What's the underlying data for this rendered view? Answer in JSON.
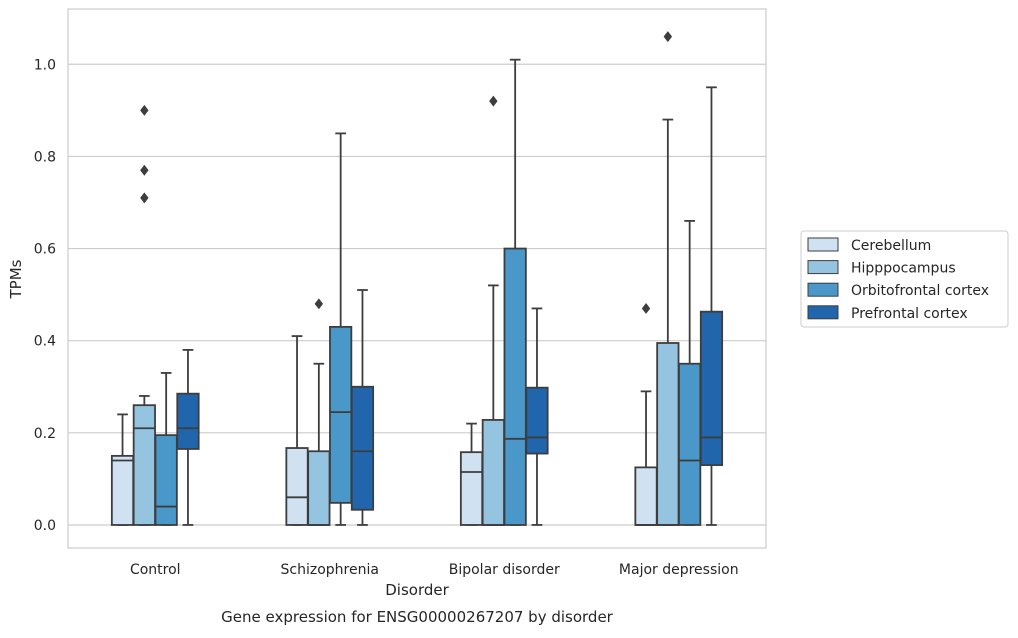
{
  "chart_data": {
    "type": "box",
    "title": "",
    "caption": "Gene expression for ENSG00000267207 by disorder",
    "xlabel": "Disorder",
    "ylabel": "TPMs",
    "ylim": [
      -0.05,
      1.12
    ],
    "yticks": [
      "0.0",
      "0.2",
      "0.4",
      "0.6",
      "0.8",
      "1.0"
    ],
    "grid": true,
    "legend_position": "right",
    "categories": [
      "Control",
      "Schizophrenia",
      "Bipolar disorder",
      "Major depression"
    ],
    "series": [
      {
        "name": "Cerebellum",
        "color": "#d0e1f1",
        "boxes": [
          {
            "whislo": 0.0,
            "q1": 0.0,
            "med": 0.14,
            "q3": 0.15,
            "whishi": 0.24,
            "fliers": []
          },
          {
            "whislo": 0.0,
            "q1": 0.0,
            "med": 0.06,
            "q3": 0.167,
            "whishi": 0.41,
            "fliers": []
          },
          {
            "whislo": 0.0,
            "q1": 0.0,
            "med": 0.115,
            "q3": 0.158,
            "whishi": 0.22,
            "fliers": []
          },
          {
            "whislo": 0.0,
            "q1": 0.0,
            "med": 0.0,
            "q3": 0.125,
            "whishi": 0.29,
            "fliers": [
              0.47
            ]
          }
        ]
      },
      {
        "name": "Hipppocampus",
        "color": "#94c4df",
        "boxes": [
          {
            "whislo": 0.0,
            "q1": 0.0,
            "med": 0.21,
            "q3": 0.26,
            "whishi": 0.28,
            "fliers": [
              0.71,
              0.77,
              0.9
            ]
          },
          {
            "whislo": 0.0,
            "q1": 0.0,
            "med": 0.0,
            "q3": 0.16,
            "whishi": 0.35,
            "fliers": [
              0.48
            ]
          },
          {
            "whislo": 0.0,
            "q1": 0.0,
            "med": 0.0,
            "q3": 0.228,
            "whishi": 0.52,
            "fliers": [
              0.92
            ]
          },
          {
            "whislo": 0.0,
            "q1": 0.0,
            "med": 0.0,
            "q3": 0.395,
            "whishi": 0.88,
            "fliers": [
              1.06
            ]
          }
        ]
      },
      {
        "name": "Orbitofrontal cortex",
        "color": "#4a98c9",
        "boxes": [
          {
            "whislo": 0.0,
            "q1": 0.0,
            "med": 0.04,
            "q3": 0.195,
            "whishi": 0.33,
            "fliers": []
          },
          {
            "whislo": 0.0,
            "q1": 0.048,
            "med": 0.245,
            "q3": 0.43,
            "whishi": 0.85,
            "fliers": []
          },
          {
            "whislo": 0.0,
            "q1": 0.0,
            "med": 0.187,
            "q3": 0.6,
            "whishi": 1.01,
            "fliers": []
          },
          {
            "whislo": 0.0,
            "q1": 0.0,
            "med": 0.14,
            "q3": 0.35,
            "whishi": 0.66,
            "fliers": []
          }
        ]
      },
      {
        "name": "Prefrontal cortex",
        "color": "#2166ac",
        "boxes": [
          {
            "whislo": 0.0,
            "q1": 0.165,
            "med": 0.21,
            "q3": 0.285,
            "whishi": 0.38,
            "fliers": []
          },
          {
            "whislo": 0.0,
            "q1": 0.033,
            "med": 0.16,
            "q3": 0.3,
            "whishi": 0.51,
            "fliers": []
          },
          {
            "whislo": 0.0,
            "q1": 0.155,
            "med": 0.19,
            "q3": 0.298,
            "whishi": 0.47,
            "fliers": []
          },
          {
            "whislo": 0.0,
            "q1": 0.13,
            "med": 0.19,
            "q3": 0.463,
            "whishi": 0.95,
            "fliers": []
          }
        ]
      }
    ]
  }
}
